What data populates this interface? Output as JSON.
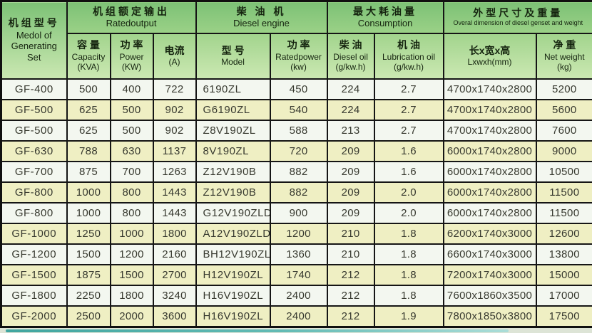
{
  "table": {
    "header": {
      "model_set": {
        "zh": "机组型号",
        "en1": "Medol of",
        "en2": "Generating",
        "en3": "Set"
      },
      "groups": [
        {
          "zh": "机组额定输出",
          "en": "Ratedoutput"
        },
        {
          "zh": "柴 油 机",
          "en": "Diesel engine"
        },
        {
          "zh": "最大耗油量",
          "en": "Consumption"
        },
        {
          "zh": "外型尺寸及重量",
          "en": "Overal dimension of diesel genset and weight"
        }
      ],
      "subcols": [
        {
          "zh": "容 量",
          "en": "Capacity",
          "unit": "(KVA)"
        },
        {
          "zh": "功 率",
          "en": "Power",
          "unit": "(KW)"
        },
        {
          "zh": "电流",
          "en": "",
          "unit": "(A)"
        },
        {
          "zh": "型 号",
          "en": "Model",
          "unit": ""
        },
        {
          "zh": "功 率",
          "en": "Ratedpower",
          "unit": "(kw)"
        },
        {
          "zh": "柴 油",
          "en": "Diesel oil",
          "unit": "(g/kw.h)"
        },
        {
          "zh": "机 油",
          "en": "Lubrication oil",
          "unit": "(g/kw.h)"
        },
        {
          "zh": "长x宽x高",
          "en": "Lxwxh(mm)",
          "unit": ""
        },
        {
          "zh": "净 重",
          "en": "Net weight",
          "unit": "(kg)"
        }
      ]
    },
    "column_keys": [
      "genset-model",
      "capacity-kva",
      "power-kw",
      "current-a",
      "engine-model",
      "ratedpower-kw",
      "diesel-oil",
      "lubrication-oil",
      "dimensions-mm",
      "net-weight-kg"
    ],
    "rows": [
      [
        "GF-400",
        "500",
        "400",
        "722",
        "6190ZL",
        "450",
        "224",
        "2.7",
        "4700x1740x2800",
        "5200"
      ],
      [
        "GF-500",
        "625",
        "500",
        "902",
        "G6190ZL",
        "540",
        "224",
        "2.7",
        "4700x1740x2800",
        "5600"
      ],
      [
        "GF-500",
        "625",
        "500",
        "902",
        "Z8V190ZL",
        "588",
        "213",
        "2.7",
        "4700x1740x2800",
        "7600"
      ],
      [
        "GF-630",
        "788",
        "630",
        "1137",
        "8V190ZL",
        "720",
        "209",
        "1.6",
        "6000x1740x2800",
        "9000"
      ],
      [
        "GF-700",
        "875",
        "700",
        "1263",
        "Z12V190B",
        "882",
        "209",
        "1.6",
        "6000x1740x2800",
        "10500"
      ],
      [
        "GF-800",
        "1000",
        "800",
        "1443",
        "Z12V190B",
        "882",
        "209",
        "2.0",
        "6000x1740x2800",
        "11500"
      ],
      [
        "GF-800",
        "1000",
        "800",
        "1443",
        "G12V190ZLD",
        "900",
        "209",
        "2.0",
        "6000x1740x2800",
        "11500"
      ],
      [
        "GF-1000",
        "1250",
        "1000",
        "1800",
        "A12V190ZLD",
        "1200",
        "210",
        "1.8",
        "6200x1740x3000",
        "12600"
      ],
      [
        "GF-1200",
        "1500",
        "1200",
        "2160",
        "BH12V190ZL",
        "1360",
        "210",
        "1.8",
        "6600x1740x3000",
        "13800"
      ],
      [
        "GF-1500",
        "1875",
        "1500",
        "2700",
        "H12V190ZL",
        "1740",
        "212",
        "1.8",
        "7200x1740x3000",
        "15000"
      ],
      [
        "GF-1800",
        "2250",
        "1800",
        "3240",
        "H16V190ZL",
        "2400",
        "212",
        "1.8",
        "7600x1860x3500",
        "17000"
      ],
      [
        "GF-2000",
        "2500",
        "2000",
        "3600",
        "H16V190ZL",
        "2400",
        "212",
        "1.9",
        "7800x1850x3800",
        "17500"
      ]
    ]
  },
  "colors": {
    "header_green_top": "#7dc276",
    "header_green_bottom": "#cbe8b2",
    "row_white": "#f3f7f0",
    "row_yellow": "#efefc3",
    "border_black": "#151515",
    "accent_teal": "#2f9e99"
  }
}
